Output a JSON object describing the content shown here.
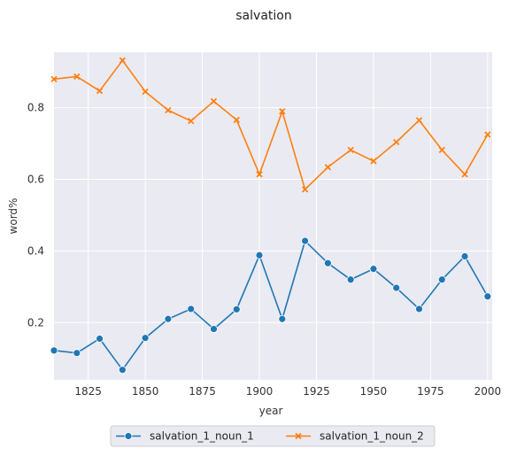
{
  "chart_data": {
    "type": "line",
    "title": "salvation",
    "xlabel": "year",
    "ylabel": "word%",
    "x": [
      1810,
      1820,
      1830,
      1840,
      1850,
      1860,
      1870,
      1880,
      1890,
      1900,
      1910,
      1920,
      1930,
      1940,
      1950,
      1960,
      1970,
      1980,
      1990,
      2000
    ],
    "xlim": [
      1810,
      2002
    ],
    "ylim": [
      0.04,
      0.955
    ],
    "xticks": [
      1825,
      1850,
      1875,
      1900,
      1925,
      1950,
      1975,
      2000
    ],
    "yticks": [
      0.2,
      0.4,
      0.6,
      0.8
    ],
    "ytick_labels": [
      "0.2",
      "0.4",
      "0.6",
      "0.8"
    ],
    "grid": true,
    "legend_position": "bottom-center",
    "series": [
      {
        "name": "salvation_1_noun_1",
        "color": "#1f77b4",
        "marker": "circle",
        "values": [
          0.122,
          0.115,
          0.155,
          0.068,
          0.157,
          0.21,
          0.238,
          0.182,
          0.237,
          0.388,
          0.21,
          0.428,
          0.366,
          0.32,
          0.35,
          0.297,
          0.238,
          0.32,
          0.385,
          0.273
        ]
      },
      {
        "name": "salvation_1_noun_2",
        "color": "#ff7f0e",
        "marker": "x",
        "values": [
          0.88,
          0.887,
          0.847,
          0.932,
          0.845,
          0.793,
          0.763,
          0.818,
          0.766,
          0.614,
          0.79,
          0.572,
          0.634,
          0.682,
          0.651,
          0.704,
          0.765,
          0.682,
          0.614,
          0.725
        ]
      }
    ]
  }
}
